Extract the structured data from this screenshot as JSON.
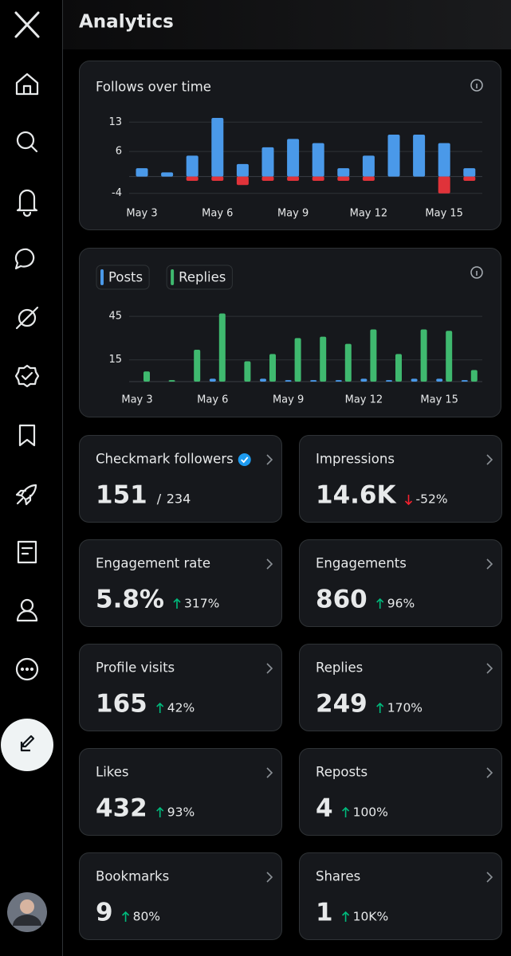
{
  "header": {
    "title": "Analytics"
  },
  "chart_data": [
    {
      "type": "bar",
      "title": "Follows over time",
      "stacked": true,
      "categories": [
        "May 3",
        null,
        null,
        "May 6",
        null,
        null,
        "May 9",
        null,
        null,
        "May 12",
        null,
        null,
        "May 15",
        null
      ],
      "series": [
        {
          "color": "#4a99e9",
          "values": [
            2,
            1,
            5,
            14,
            3,
            7,
            9,
            8,
            2,
            5,
            10,
            10,
            8,
            2
          ]
        },
        {
          "color": "#e0333a",
          "values": [
            0,
            0,
            -1,
            -1,
            -2,
            -1,
            -1,
            -1,
            -1,
            -1,
            0,
            0,
            -4,
            -1
          ]
        }
      ],
      "ylim": [
        -5,
        14
      ],
      "yticks": [
        13,
        6,
        -4
      ],
      "grid": true
    },
    {
      "type": "bar",
      "stacked": false,
      "legend": "top-left",
      "categories": [
        "May 3",
        null,
        null,
        "May 6",
        null,
        null,
        "May 9",
        null,
        null,
        "May 12",
        null,
        null,
        "May 15",
        null
      ],
      "series": [
        {
          "name": "Posts",
          "color": "#4a99e9",
          "values": [
            0,
            0,
            0,
            2,
            0,
            2,
            1,
            1,
            1,
            2,
            1,
            2,
            2,
            1
          ]
        },
        {
          "name": "Replies",
          "color": "#3fb96f",
          "values": [
            7,
            1,
            22,
            47,
            14,
            19,
            30,
            31,
            26,
            36,
            19,
            36,
            35,
            8
          ]
        }
      ],
      "ylim": [
        0,
        50
      ],
      "yticks": [
        45,
        15
      ],
      "grid": true
    }
  ],
  "cards": [
    {
      "title": "Checkmark followers",
      "value": "151",
      "total": "234",
      "verified": true
    },
    {
      "title": "Impressions",
      "value": "14.6K",
      "change": "-52%",
      "trend": "down"
    },
    {
      "title": "Engagement rate",
      "value": "5.8%",
      "change": "317%",
      "trend": "up"
    },
    {
      "title": "Engagements",
      "value": "860",
      "change": "96%",
      "trend": "up"
    },
    {
      "title": "Profile visits",
      "value": "165",
      "change": "42%",
      "trend": "up"
    },
    {
      "title": "Replies",
      "value": "249",
      "change": "170%",
      "trend": "up"
    },
    {
      "title": "Likes",
      "value": "432",
      "change": "93%",
      "trend": "up"
    },
    {
      "title": "Reposts",
      "value": "4",
      "change": "100%",
      "trend": "up"
    },
    {
      "title": "Bookmarks",
      "value": "9",
      "change": "80%",
      "trend": "up"
    },
    {
      "title": "Shares",
      "value": "1",
      "change": "10K%",
      "trend": "up"
    }
  ]
}
